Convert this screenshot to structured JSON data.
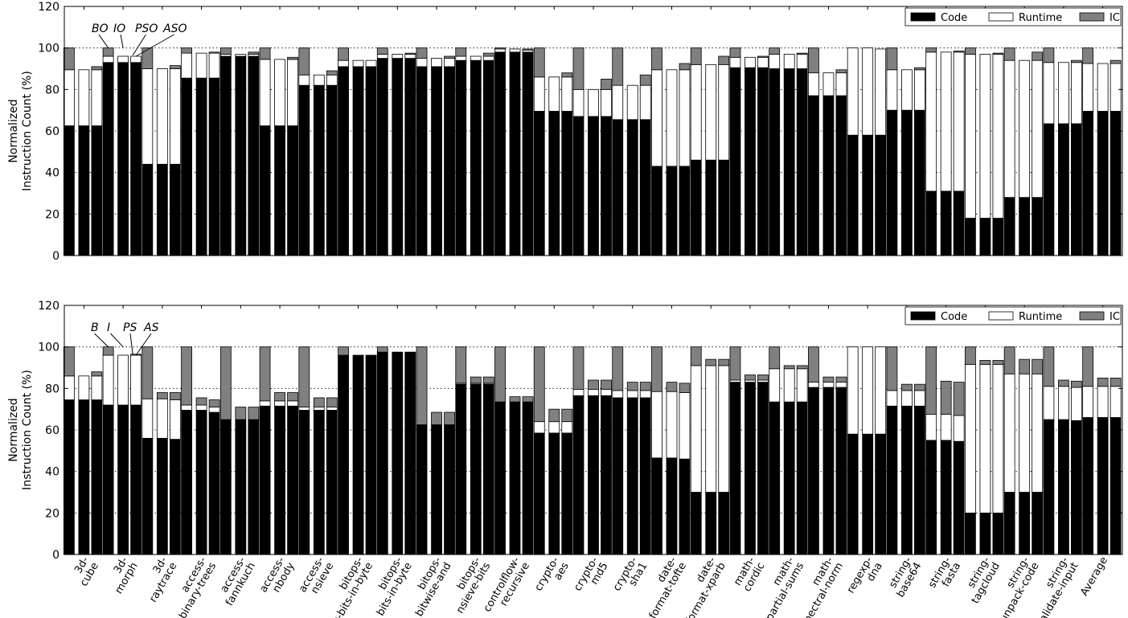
{
  "chart_data": [
    {
      "type": "bar",
      "stacked": true,
      "ylabel": "Normalized\nInstruction Count (%)",
      "ylim": [
        0,
        120
      ],
      "yticks": [
        0,
        20,
        40,
        60,
        80,
        100,
        120
      ],
      "grid": true,
      "legend_position": "top-right",
      "legend": [
        "Code",
        "Runtime",
        "IC"
      ],
      "annotations": [
        "BO",
        "IO",
        "PSO",
        "ASO"
      ],
      "categories": [
        "3d-cube",
        "3d-morph",
        "3d-raytrace",
        "access-binary-trees",
        "access-fannkuch",
        "access-nbody",
        "access-nsieve",
        "bitops-3bit-bits-in-byte",
        "bitops-bits-in-byte",
        "bitops-bitwise-and",
        "bitops-nsieve-bits",
        "controlflow-recursive",
        "crypto-aes",
        "crypto-md5",
        "crypto-sha1",
        "date-format-tofte",
        "date-format-xparb",
        "math-cordic",
        "math-partial-sums",
        "math-spectral-norm",
        "regexp-dna",
        "string-base64",
        "string-fasta",
        "string-tagcloud",
        "string-unpack-code",
        "string-validate-input",
        "Average"
      ],
      "bars": [
        [
          [
            62.5,
            27,
            10.5
          ],
          [
            62.5,
            27,
            0
          ],
          [
            62.5,
            27,
            1.5
          ]
        ],
        [
          [
            93,
            3,
            4
          ],
          [
            93,
            3,
            0
          ],
          [
            93,
            3,
            0
          ]
        ],
        [
          [
            44,
            46,
            10
          ],
          [
            44,
            46,
            0
          ],
          [
            44,
            46,
            1.5
          ]
        ],
        [
          [
            85.5,
            12,
            2.5
          ],
          [
            85.5,
            12,
            0
          ],
          [
            85.5,
            12,
            0.5
          ]
        ],
        [
          [
            96,
            1,
            3
          ],
          [
            96,
            1,
            0
          ],
          [
            96,
            1,
            1
          ]
        ],
        [
          [
            62.5,
            32,
            5.5
          ],
          [
            62.5,
            32,
            0
          ],
          [
            62.5,
            32,
            1
          ]
        ],
        [
          [
            82,
            5,
            13
          ],
          [
            82,
            5,
            0
          ],
          [
            82,
            5,
            2
          ]
        ],
        [
          [
            91,
            3,
            6
          ],
          [
            91,
            3,
            0
          ],
          [
            91,
            3,
            0
          ]
        ],
        [
          [
            95,
            2,
            3
          ],
          [
            95,
            2,
            0
          ],
          [
            95,
            2,
            0.5
          ]
        ],
        [
          [
            91,
            4,
            5
          ],
          [
            91,
            4,
            0
          ],
          [
            91,
            4,
            1
          ]
        ],
        [
          [
            94,
            2,
            4
          ],
          [
            94,
            2,
            0
          ],
          [
            94,
            2,
            1.5
          ]
        ],
        [
          [
            98,
            1.5,
            0.5
          ],
          [
            98,
            1.5,
            0
          ],
          [
            98,
            1,
            0.5
          ]
        ],
        [
          [
            69.5,
            16.5,
            14
          ],
          [
            69.5,
            16.5,
            0
          ],
          [
            69.5,
            16.5,
            2
          ]
        ],
        [
          [
            67,
            13,
            20
          ],
          [
            67,
            13,
            0
          ],
          [
            67,
            13,
            5
          ]
        ],
        [
          [
            65.5,
            16.5,
            18
          ],
          [
            65.5,
            16.5,
            0
          ],
          [
            65.5,
            16.5,
            5
          ]
        ],
        [
          [
            43,
            46.5,
            10.5
          ],
          [
            43,
            46.5,
            0
          ],
          [
            43,
            46.5,
            3
          ]
        ],
        [
          [
            46,
            46,
            8
          ],
          [
            46,
            46,
            0
          ],
          [
            46,
            46,
            4
          ]
        ],
        [
          [
            90.5,
            5,
            4.5
          ],
          [
            90.5,
            5,
            0
          ],
          [
            90.5,
            5,
            0.5
          ]
        ],
        [
          [
            90,
            7,
            3
          ],
          [
            90,
            7,
            0
          ],
          [
            90,
            7,
            0.5
          ]
        ],
        [
          [
            77,
            11,
            12
          ],
          [
            77,
            11,
            0
          ],
          [
            77,
            11,
            1.5
          ]
        ],
        [
          [
            58,
            42,
            0
          ],
          [
            58,
            42,
            0
          ],
          [
            58,
            41.5,
            0
          ]
        ],
        [
          [
            70,
            19.5,
            10.5
          ],
          [
            70,
            19.5,
            0
          ],
          [
            70,
            19.5,
            1
          ]
        ],
        [
          [
            31,
            67,
            2
          ],
          [
            31,
            67,
            0
          ],
          [
            31,
            67,
            0.5
          ]
        ],
        [
          [
            18,
            79,
            3
          ],
          [
            18,
            79,
            0
          ],
          [
            18,
            79,
            0.5
          ]
        ],
        [
          [
            28,
            66,
            6
          ],
          [
            28,
            66,
            0
          ],
          [
            28,
            66,
            4
          ]
        ],
        [
          [
            63.5,
            29.5,
            7
          ],
          [
            63.5,
            29.5,
            0
          ],
          [
            63.5,
            29.5,
            1
          ]
        ],
        [
          [
            69.5,
            23,
            7.5
          ],
          [
            69.5,
            23,
            0
          ],
          [
            69.5,
            23,
            1.5
          ]
        ]
      ]
    },
    {
      "type": "bar",
      "stacked": true,
      "ylabel": "Normalized\nInstruction Count (%)",
      "ylim": [
        0,
        120
      ],
      "yticks": [
        0,
        20,
        40,
        60,
        80,
        100,
        120
      ],
      "grid": true,
      "legend_position": "top-right",
      "legend": [
        "Code",
        "Runtime",
        "IC"
      ],
      "annotations": [
        "B",
        "I",
        "PS",
        "AS"
      ],
      "categories": [
        "3d-cube",
        "3d-morph",
        "3d-raytrace",
        "access-binary-trees",
        "access-fannkuch",
        "access-nbody",
        "access-nsieve",
        "bitops-3bit-bits-in-byte",
        "bitops-bits-in-byte",
        "bitops-bitwise-and",
        "bitops-nsieve-bits",
        "controlflow-recursive",
        "crypto-aes",
        "crypto-md5",
        "crypto-sha1",
        "date-format-tofte",
        "date-format-xparb",
        "math-cordic",
        "math-partial-sums",
        "math-spectral-norm",
        "regexp-dna",
        "string-base64",
        "string-fasta",
        "string-tagcloud",
        "string-unpack-code",
        "string-validate-input",
        "Average"
      ],
      "bars": [
        [
          [
            74.5,
            11.5,
            14
          ],
          [
            74.5,
            11.5,
            0
          ],
          [
            74.5,
            11.5,
            2
          ]
        ],
        [
          [
            72,
            24,
            4
          ],
          [
            72,
            24,
            0
          ],
          [
            72,
            24,
            0.5
          ]
        ],
        [
          [
            56,
            19,
            25
          ],
          [
            56,
            19,
            3
          ],
          [
            55.5,
            19,
            3.5
          ]
        ],
        [
          [
            69.5,
            2.5,
            28
          ],
          [
            69.5,
            2.5,
            3.5
          ],
          [
            68.5,
            2.5,
            3.5
          ]
        ],
        [
          [
            65,
            0,
            35
          ],
          [
            65,
            0,
            6
          ],
          [
            65,
            0,
            6
          ]
        ],
        [
          [
            71.5,
            2.5,
            26
          ],
          [
            71.5,
            2.5,
            4
          ],
          [
            71.5,
            2.5,
            4
          ]
        ],
        [
          [
            69.5,
            1.5,
            29
          ],
          [
            69.5,
            1.5,
            4.5
          ],
          [
            69.5,
            1.5,
            4.5
          ]
        ],
        [
          [
            96,
            0,
            4
          ],
          [
            96,
            0,
            0
          ],
          [
            96,
            0,
            0
          ]
        ],
        [
          [
            97.5,
            0,
            2.5
          ],
          [
            97.5,
            0,
            0
          ],
          [
            97.5,
            0,
            0
          ]
        ],
        [
          [
            62.5,
            0,
            37.5
          ],
          [
            62.5,
            0,
            6
          ],
          [
            62.5,
            0,
            6
          ]
        ],
        [
          [
            82,
            0.5,
            17.5
          ],
          [
            82,
            0.5,
            3
          ],
          [
            82,
            0.5,
            3
          ]
        ],
        [
          [
            73.5,
            0,
            26.5
          ],
          [
            73.5,
            0,
            2.5
          ],
          [
            73.5,
            0,
            2.5
          ]
        ],
        [
          [
            58.5,
            5.5,
            36
          ],
          [
            58.5,
            5.5,
            6
          ],
          [
            58.5,
            5.5,
            6
          ]
        ],
        [
          [
            76.5,
            3,
            20.5
          ],
          [
            76.5,
            3,
            4.5
          ],
          [
            76.5,
            3,
            4.5
          ]
        ],
        [
          [
            75.5,
            3.5,
            21
          ],
          [
            75.5,
            3.5,
            4
          ],
          [
            75.5,
            3.5,
            4
          ]
        ],
        [
          [
            46.5,
            32,
            21.5
          ],
          [
            46.5,
            32,
            4.5
          ],
          [
            46,
            32,
            4.5
          ]
        ],
        [
          [
            30,
            61,
            9
          ],
          [
            30,
            61,
            3
          ],
          [
            30,
            61,
            3
          ]
        ],
        [
          [
            83,
            1,
            16
          ],
          [
            83,
            1,
            2.5
          ],
          [
            83,
            1,
            2.5
          ]
        ],
        [
          [
            73.5,
            16,
            10.5
          ],
          [
            73.5,
            16,
            1.5
          ],
          [
            73.5,
            16,
            1.5
          ]
        ],
        [
          [
            80.5,
            2.5,
            17
          ],
          [
            80.5,
            2.5,
            2.5
          ],
          [
            80.5,
            2.5,
            2.5
          ]
        ],
        [
          [
            58,
            42,
            0
          ],
          [
            58,
            42,
            0
          ],
          [
            58,
            42,
            0
          ]
        ],
        [
          [
            71.5,
            7.5,
            21
          ],
          [
            71.5,
            7.5,
            3
          ],
          [
            71.5,
            7.5,
            3
          ]
        ],
        [
          [
            55,
            12.5,
            32.5
          ],
          [
            55,
            12.5,
            16
          ],
          [
            54.5,
            12.5,
            16
          ]
        ],
        [
          [
            20,
            71.5,
            8.5
          ],
          [
            20,
            71.5,
            2
          ],
          [
            20,
            71.5,
            2
          ]
        ],
        [
          [
            30,
            57,
            13
          ],
          [
            30,
            57,
            7
          ],
          [
            30,
            57,
            7
          ]
        ],
        [
          [
            65,
            16,
            19
          ],
          [
            65,
            16,
            3
          ],
          [
            64.5,
            16,
            3
          ]
        ],
        [
          [
            66,
            15,
            19
          ],
          [
            66,
            15,
            4
          ],
          [
            66,
            15,
            4
          ]
        ]
      ]
    }
  ]
}
